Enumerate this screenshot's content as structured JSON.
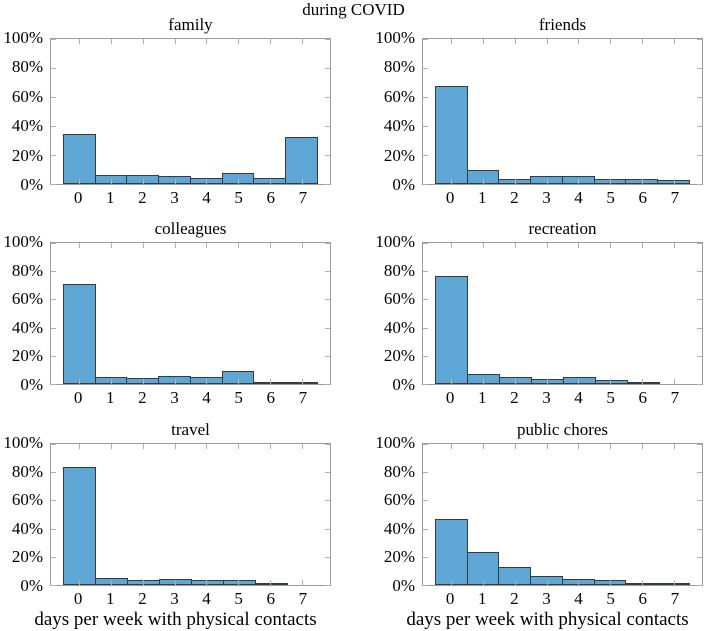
{
  "figure": {
    "title": "during COVID",
    "xlabel": "days per week with physical contacts"
  },
  "y_axis": {
    "tick_labels": [
      "0%",
      "20%",
      "40%",
      "60%",
      "80%",
      "100%"
    ],
    "tick_values": [
      0,
      20,
      40,
      60,
      80,
      100
    ]
  },
  "chart_data": [
    {
      "type": "bar",
      "title": "family",
      "categories": [
        "0",
        "1",
        "2",
        "3",
        "4",
        "5",
        "6",
        "7"
      ],
      "values": [
        34,
        5.5,
        5.5,
        5,
        3.5,
        7,
        3.5,
        32
      ],
      "ylim": [
        0,
        100
      ]
    },
    {
      "type": "bar",
      "title": "friends",
      "categories": [
        "0",
        "1",
        "2",
        "3",
        "4",
        "5",
        "6",
        "7"
      ],
      "values": [
        67,
        9,
        3,
        4.5,
        4.5,
        2.5,
        3,
        2
      ],
      "ylim": [
        0,
        100
      ]
    },
    {
      "type": "bar",
      "title": "colleagues",
      "categories": [
        "0",
        "1",
        "2",
        "3",
        "4",
        "5",
        "6",
        "7"
      ],
      "values": [
        70,
        4.5,
        3.5,
        5,
        4.5,
        8.5,
        1,
        1
      ],
      "ylim": [
        0,
        100
      ]
    },
    {
      "type": "bar",
      "title": "recreation",
      "categories": [
        "0",
        "1",
        "2",
        "3",
        "4",
        "5",
        "6",
        "7"
      ],
      "values": [
        76,
        6.5,
        4,
        3,
        4.5,
        2,
        1,
        0
      ],
      "ylim": [
        0,
        100
      ]
    },
    {
      "type": "bar",
      "title": "travel",
      "categories": [
        "0",
        "1",
        "2",
        "3",
        "4",
        "5",
        "6",
        "7"
      ],
      "values": [
        83,
        4,
        3,
        3.5,
        2.5,
        2.5,
        1,
        0
      ],
      "ylim": [
        0,
        100
      ]
    },
    {
      "type": "bar",
      "title": "public chores",
      "categories": [
        "0",
        "1",
        "2",
        "3",
        "4",
        "5",
        "6",
        "7"
      ],
      "values": [
        46,
        23,
        12,
        6,
        3.5,
        3,
        0.7,
        1
      ],
      "ylim": [
        0,
        100
      ]
    }
  ],
  "colors": {
    "bar_fill": "#5ea7d4",
    "bar_edge": "#333a40",
    "axis_box": "#9b9b9b",
    "tick_mark": "#b0b0b0",
    "text": "#000000"
  }
}
